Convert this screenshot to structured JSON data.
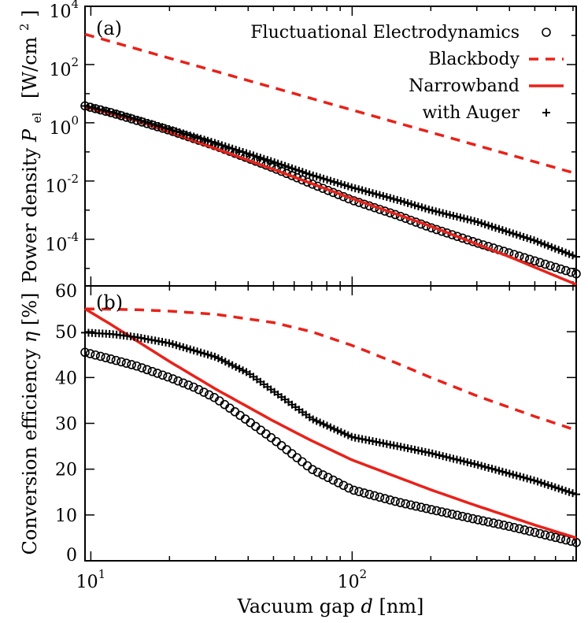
{
  "chart_data": [
    {
      "panel": "(a)",
      "type": "line",
      "ylabel_main": "Power density",
      "ylabel_sym": "P",
      "ylabel_sub": "el",
      "ylabel_unit_prefix": "[W/cm",
      "ylabel_unit_sup": "2",
      "ylabel_unit_suffix": "]",
      "yscale": "log",
      "xscale": "log",
      "xlim": [
        9.5,
        720
      ],
      "ylim": [
        2.5e-06,
        10000
      ],
      "yticks": [
        {
          "base": "10",
          "exp": "4",
          "value": 10000
        },
        {
          "base": "10",
          "exp": "2",
          "value": 100
        },
        {
          "base": "10",
          "exp": "0",
          "value": 1
        },
        {
          "base": "10",
          "exp": "-2",
          "value": 0.01
        },
        {
          "base": "10",
          "exp": "-4",
          "value": 0.0001
        }
      ],
      "legend_position": "top-right",
      "series": [
        {
          "name": "Fluctuational Electrodynamics",
          "marker": "circle",
          "color": "#000000",
          "x": [
            9.5,
            12,
            15,
            20,
            30,
            50,
            70,
            100,
            150,
            200,
            300,
            500,
            720
          ],
          "y": [
            3.8,
            2.2,
            1.2,
            0.55,
            0.16,
            0.028,
            0.008,
            0.0022,
            0.00065,
            0.00025,
            7.5e-05,
            1.8e-05,
            6.5e-06
          ]
        },
        {
          "name": "Blackbody",
          "line": "dashed",
          "color": "#e8221a",
          "x": [
            9.5,
            720
          ],
          "y": [
            1100,
            0.018
          ]
        },
        {
          "name": "Narrowband",
          "line": "solid",
          "color": "#e8221a",
          "x": [
            9.5,
            15,
            20,
            30,
            50,
            100,
            200,
            400,
            720
          ],
          "y": [
            3.5,
            1.2,
            0.48,
            0.13,
            0.025,
            0.0025,
            0.00028,
            2.5e-05,
            2.8e-06
          ]
        },
        {
          "name": "with Auger",
          "marker": "plus",
          "color": "#000000",
          "x": [
            9.5,
            12,
            15,
            20,
            30,
            50,
            70,
            100,
            150,
            200,
            300,
            500,
            720
          ],
          "y": [
            3.8,
            2.3,
            1.3,
            0.6,
            0.2,
            0.045,
            0.016,
            0.006,
            0.0022,
            0.001,
            0.0004,
            9e-05,
            2.5e-05
          ]
        }
      ]
    },
    {
      "panel": "(b)",
      "type": "line",
      "ylabel_main": "Conversion efficiency",
      "ylabel_sym": "η",
      "ylabel_unit": "[%]",
      "xlabel_main": "Vacuum gap",
      "xlabel_sym": "d",
      "xlabel_unit": "[nm]",
      "xscale": "log",
      "xlim": [
        9.5,
        720
      ],
      "ylim": [
        0,
        60
      ],
      "yticks": [
        "0",
        "10",
        "20",
        "30",
        "40",
        "50",
        "60"
      ],
      "xticks": [
        {
          "base": "10",
          "exp": "1",
          "value": 10
        },
        {
          "base": "10",
          "exp": "2",
          "value": 100
        }
      ],
      "series": [
        {
          "name": "Fluctuational Electrodynamics",
          "marker": "circle",
          "color": "#000000",
          "x": [
            9.5,
            12,
            15,
            20,
            25,
            30,
            40,
            50,
            70,
            100,
            150,
            200,
            300,
            400,
            500,
            720
          ],
          "y": [
            45.5,
            44,
            42.5,
            40,
            37.8,
            35.5,
            30.5,
            26.5,
            20,
            15.5,
            12.8,
            11.2,
            9,
            7.5,
            6.2,
            4
          ]
        },
        {
          "name": "Blackbody",
          "line": "dashed",
          "color": "#e8221a",
          "x": [
            9.5,
            15,
            20,
            30,
            50,
            70,
            100,
            150,
            200,
            300,
            500,
            720
          ],
          "y": [
            55,
            54.8,
            54.5,
            53.8,
            52,
            50,
            47,
            43,
            40,
            36,
            31.5,
            28.5
          ]
        },
        {
          "name": "Narrowband",
          "line": "solid",
          "color": "#e8221a",
          "x": [
            9.5,
            12,
            15,
            20,
            30,
            50,
            70,
            100,
            150,
            200,
            300,
            500,
            720
          ],
          "y": [
            55,
            51.5,
            48,
            43.5,
            37.5,
            30.5,
            26.2,
            22,
            18.2,
            15.5,
            12,
            7.8,
            5
          ]
        },
        {
          "name": "with Auger",
          "marker": "plus",
          "color": "#000000",
          "x": [
            9.5,
            12,
            15,
            20,
            30,
            40,
            50,
            70,
            100,
            150,
            200,
            300,
            500,
            720
          ],
          "y": [
            49.8,
            49.5,
            48.8,
            47.5,
            44.5,
            41,
            37,
            31,
            27,
            25,
            23.5,
            21,
            17.5,
            14.5
          ]
        }
      ]
    }
  ]
}
